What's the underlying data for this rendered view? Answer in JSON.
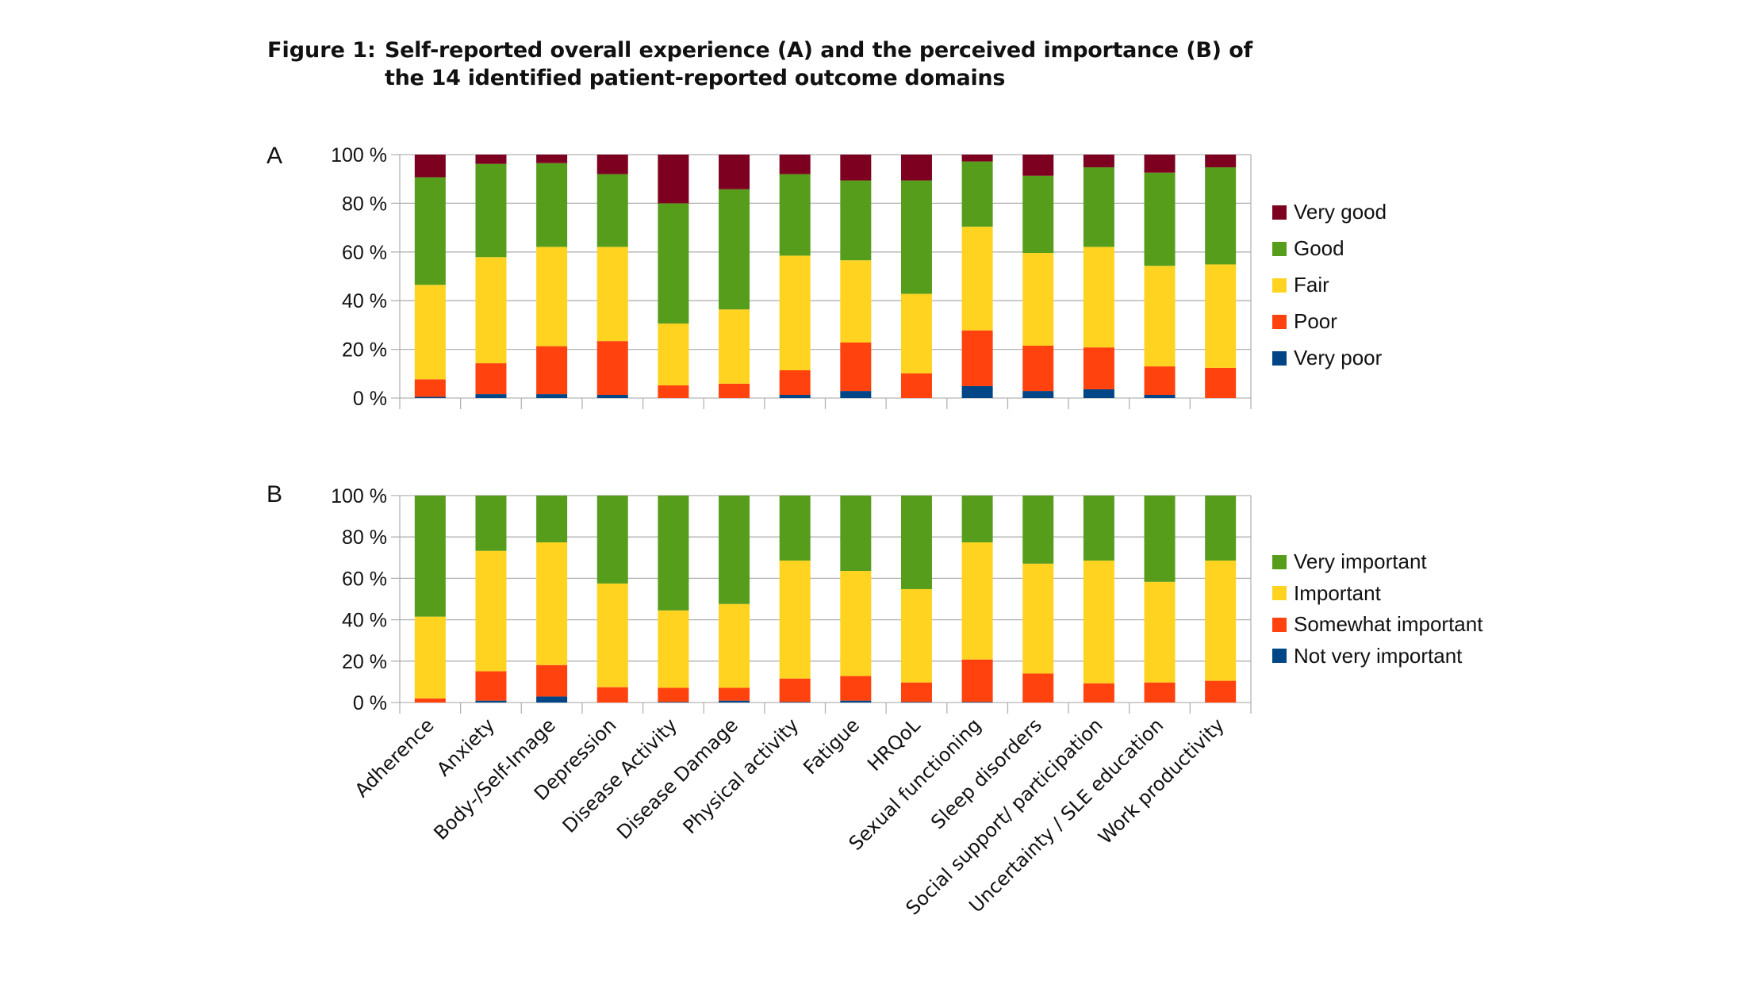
{
  "title": {
    "figure_label": "Figure 1:",
    "text": "Self-reported overall experience (A) and the perceived importance (B) of the 14 identified patient-reported outcome domains"
  },
  "chart_data": [
    {
      "id": "A",
      "panel_label": "A",
      "type": "bar",
      "stacked": true,
      "percent": true,
      "title": "",
      "xlabel": "",
      "ylabel": "",
      "ylim": [
        0,
        100
      ],
      "yticks": [
        "0 %",
        "20 %",
        "40 %",
        "60 %",
        "80 %",
        "100 %"
      ],
      "grid": true,
      "legend_position": "right",
      "categories": [
        "Adherence",
        "Anxiety",
        "Body-/Self-Image",
        "Depression",
        "Disease Activity",
        "Disease Damage",
        "Physical activity",
        "Fatigue",
        "HRQoL",
        "Sexual functioning",
        "Sleep disorders",
        "Social support/ participation",
        "Uncertainty / SLE education",
        "Work productivity"
      ],
      "series": [
        {
          "name": "Very poor",
          "color": "#004586",
          "values": [
            0.5,
            1.6,
            1.6,
            1.3,
            0,
            0,
            1.3,
            2.9,
            0,
            4.9,
            2.9,
            3.6,
            1.3,
            0
          ]
        },
        {
          "name": "Poor",
          "color": "#ff420e",
          "values": [
            7.2,
            12.7,
            19.7,
            22.1,
            5.2,
            5.9,
            10.1,
            19.9,
            10.1,
            22.9,
            18.6,
            17.2,
            11.7,
            12.4
          ]
        },
        {
          "name": "Fair",
          "color": "#ffd320",
          "values": [
            38.8,
            43.6,
            40.8,
            38.7,
            25.4,
            30.5,
            47.1,
            33.8,
            32.7,
            42.6,
            38.1,
            41.3,
            41.3,
            42.5
          ]
        },
        {
          "name": "Good",
          "color": "#579d1c",
          "values": [
            44.2,
            38.3,
            34.4,
            29.9,
            49.4,
            49.4,
            33.5,
            32.8,
            46.6,
            26.8,
            31.7,
            32.7,
            38.3,
            39.9
          ]
        },
        {
          "name": "Very good",
          "color": "#7e0021",
          "values": [
            9.3,
            3.8,
            3.5,
            8.0,
            20.0,
            14.2,
            8.0,
            10.6,
            10.6,
            2.8,
            8.7,
            5.2,
            7.4,
            5.2
          ]
        }
      ],
      "legend_order": [
        "Very good",
        "Good",
        "Fair",
        "Poor",
        "Very poor"
      ]
    },
    {
      "id": "B",
      "panel_label": "B",
      "type": "bar",
      "stacked": true,
      "percent": true,
      "title": "",
      "xlabel": "",
      "ylabel": "",
      "ylim": [
        0,
        100
      ],
      "yticks": [
        "0 %",
        "20 %",
        "40 %",
        "60 %",
        "80 %",
        "100 %"
      ],
      "grid": true,
      "legend_position": "right",
      "categories": [
        "Adherence",
        "Anxiety",
        "Body-/Self-Image",
        "Depression",
        "Disease Activity",
        "Disease Damage",
        "Physical activity",
        "Fatigue",
        "HRQoL",
        "Sexual functioning",
        "Sleep disorders",
        "Social support/ participation",
        "Uncertainty / SLE education",
        "Work productivity"
      ],
      "series": [
        {
          "name": "Not very important",
          "color": "#004586",
          "values": [
            0,
            0.9,
            2.9,
            0,
            0.3,
            0.9,
            0.3,
            0.9,
            0.3,
            0.3,
            0,
            0,
            0,
            0
          ]
        },
        {
          "name": "Somewhat important",
          "color": "#ff420e",
          "values": [
            2.0,
            14.2,
            15.2,
            7.4,
            6.8,
            6.2,
            11.3,
            11.9,
            9.4,
            20.5,
            14.0,
            9.3,
            9.7,
            10.5
          ]
        },
        {
          "name": "Important",
          "color": "#ffd320",
          "values": [
            39.5,
            58.2,
            59.3,
            50.1,
            37.4,
            40.5,
            57.0,
            50.8,
            45.1,
            56.6,
            53.1,
            59.3,
            48.6,
            58.1
          ]
        },
        {
          "name": "Very important",
          "color": "#579d1c",
          "values": [
            58.5,
            26.7,
            22.6,
            42.5,
            55.5,
            52.4,
            31.4,
            36.4,
            45.2,
            22.6,
            32.9,
            31.4,
            41.7,
            31.4
          ]
        }
      ],
      "legend_order": [
        "Very important",
        "Important",
        "Somewhat important",
        "Not very important"
      ]
    }
  ]
}
